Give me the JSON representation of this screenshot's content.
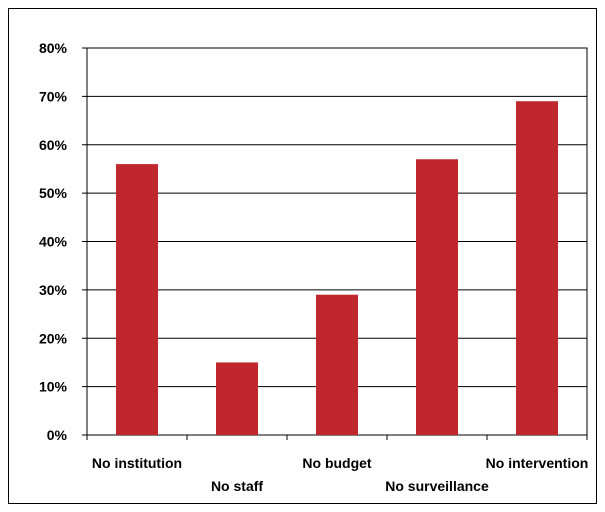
{
  "chart_data": {
    "type": "bar",
    "categories": [
      "No institution",
      "No staff",
      "No budget",
      "No surveillance",
      "No intervention"
    ],
    "values": [
      56,
      15,
      29,
      57,
      69
    ],
    "ylim": [
      0,
      80
    ],
    "yticks": [
      "0%",
      "10%",
      "20%",
      "30%",
      "40%",
      "50%",
      "60%",
      "70%",
      "80%"
    ],
    "grid": true,
    "legend": "none",
    "bar_color": "#c0272d"
  }
}
